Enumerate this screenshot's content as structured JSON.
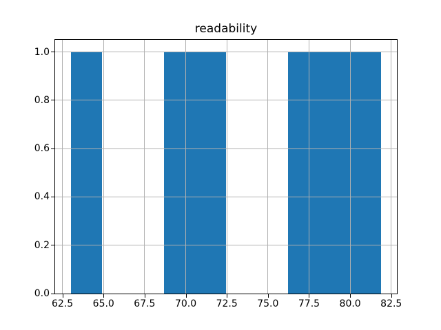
{
  "chart_data": {
    "type": "bar",
    "subtype": "histogram",
    "title": "readability",
    "xlabel": "",
    "ylabel": "",
    "bin_edges": [
      63.0,
      64.89,
      66.78,
      68.67,
      70.56,
      72.45,
      74.34,
      76.23,
      78.12,
      80.01,
      81.9
    ],
    "counts": [
      1,
      0,
      0,
      1,
      1,
      0,
      0,
      1,
      1,
      1
    ],
    "xlim": [
      62.055,
      82.845
    ],
    "ylim": [
      0,
      1.05
    ],
    "xticks": [
      62.5,
      65.0,
      67.5,
      70.0,
      72.5,
      75.0,
      77.5,
      80.0,
      82.5
    ],
    "xtick_labels": [
      "62.5",
      "65.0",
      "67.5",
      "70.0",
      "72.5",
      "75.0",
      "77.5",
      "80.0",
      "82.5"
    ],
    "yticks": [
      0.0,
      0.2,
      0.4,
      0.6,
      0.8,
      1.0
    ],
    "ytick_labels": [
      "0.0",
      "0.2",
      "0.4",
      "0.6",
      "0.8",
      "1.0"
    ],
    "grid": true,
    "legend": false,
    "colors": {
      "bar": "#1f77b4",
      "grid": "#b0b0b0",
      "spine": "#000000",
      "text": "#000000",
      "background": "#ffffff"
    }
  }
}
